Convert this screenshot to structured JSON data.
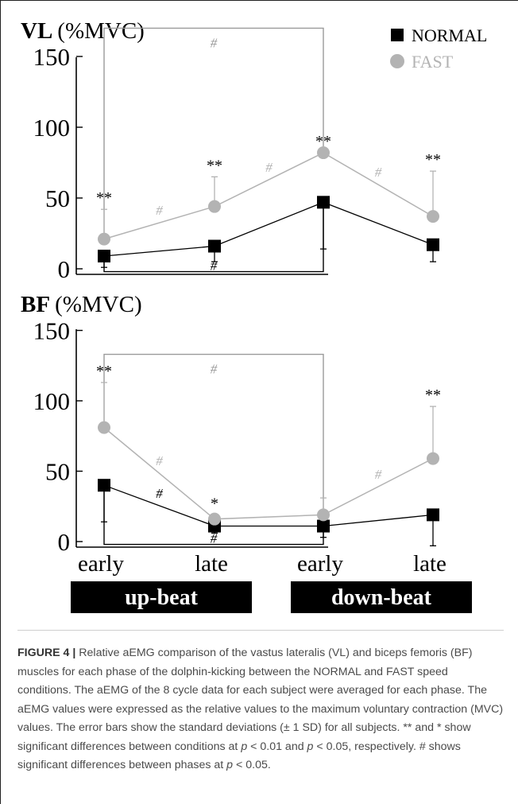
{
  "chart_data": [
    {
      "type": "line",
      "title": "VL",
      "ylabel": "(%MVC)",
      "ylim": [
        0,
        150
      ],
      "yticks": [
        0,
        50,
        100,
        150
      ],
      "categories": [
        "early",
        "late",
        "early",
        "late"
      ],
      "series": [
        {
          "name": "NORMAL",
          "color": "#000000",
          "marker": "square",
          "values": [
            9,
            16,
            47,
            17
          ],
          "sd": [
            8,
            11,
            33,
            12
          ]
        },
        {
          "name": "FAST",
          "color": "#b3b3b3",
          "marker": "circle",
          "values": [
            21,
            44,
            82,
            37
          ],
          "sd": [
            21,
            21,
            0,
            32
          ]
        }
      ],
      "sig_condition": [
        {
          "index": 0,
          "text": "**"
        },
        {
          "index": 1,
          "text": "**"
        },
        {
          "index": 2,
          "text": "**"
        },
        {
          "index": 3,
          "text": "**"
        }
      ],
      "sig_phase_segments": [
        {
          "index": 0,
          "text": "#"
        },
        {
          "index": 1,
          "text": "#"
        },
        {
          "index": 2,
          "text": "#"
        }
      ],
      "brackets": [
        {
          "from": 0,
          "to": 2,
          "side": "top",
          "y": 170,
          "text": "#",
          "series": "FAST"
        },
        {
          "from": 0,
          "to": 2,
          "side": "bottom",
          "y": -2,
          "text": "#",
          "series": "NORMAL"
        }
      ]
    },
    {
      "type": "line",
      "title": "BF",
      "ylabel": "(%MVC)",
      "ylim": [
        0,
        150
      ],
      "yticks": [
        0,
        50,
        100,
        150
      ],
      "categories": [
        "early",
        "late",
        "early",
        "late"
      ],
      "series": [
        {
          "name": "NORMAL",
          "color": "#000000",
          "marker": "square",
          "values": [
            40,
            11,
            11,
            19
          ],
          "sd": [
            26,
            5,
            8,
            22
          ]
        },
        {
          "name": "FAST",
          "color": "#b3b3b3",
          "marker": "circle",
          "values": [
            81,
            16,
            19,
            59
          ],
          "sd": [
            32,
            3,
            12,
            37
          ]
        }
      ],
      "sig_condition": [
        {
          "index": 0,
          "text": "**"
        },
        {
          "index": 1,
          "text": "*"
        },
        {
          "index": 3,
          "text": "**"
        }
      ],
      "sig_phase_segments": [
        {
          "index": 0,
          "text": "#",
          "series": "FAST"
        },
        {
          "index": 0,
          "text": "#",
          "series": "NORMAL"
        },
        {
          "index": 2,
          "text": "#",
          "series": "FAST"
        }
      ],
      "brackets": [
        {
          "from": 0,
          "to": 2,
          "side": "top",
          "y": 133,
          "text": "#",
          "series": "FAST"
        },
        {
          "from": 0,
          "to": 2,
          "side": "bottom",
          "y": -2,
          "text": "#",
          "series": "NORMAL"
        }
      ]
    }
  ],
  "legend": {
    "normal_label": "NORMAL",
    "fast_label": "FAST",
    "placement": "top-right"
  },
  "phases": [
    {
      "label": "up-beat"
    },
    {
      "label": "down-beat"
    }
  ],
  "colors": {
    "normal": "#000000",
    "fast": "#b3b3b3",
    "bracket": "#9a9a9a",
    "caption_label": "#333333",
    "caption_text": "#4a4a4a"
  },
  "caption": {
    "label": "FIGURE 4 |",
    "text_1": " Relative aEMG comparison of the vastus lateralis (VL) and biceps femoris (BF) muscles for each phase of the dolphin-kicking between the NORMAL and FAST speed conditions. The aEMG of the 8 cycle data for each subject were averaged for each phase. The aEMG values were expressed as the relative values to the maximum voluntary contraction (MVC) values. The error bars show the standard deviations (± 1 SD) for all subjects. ** and * show significant differences between conditions at ",
    "p1": "p",
    "text_2": " < 0.01 and ",
    "p2": "p",
    "text_3": " < 0.05, respectively. # shows significant differences between phases at ",
    "p3": "p",
    "text_4": " < 0.05."
  }
}
